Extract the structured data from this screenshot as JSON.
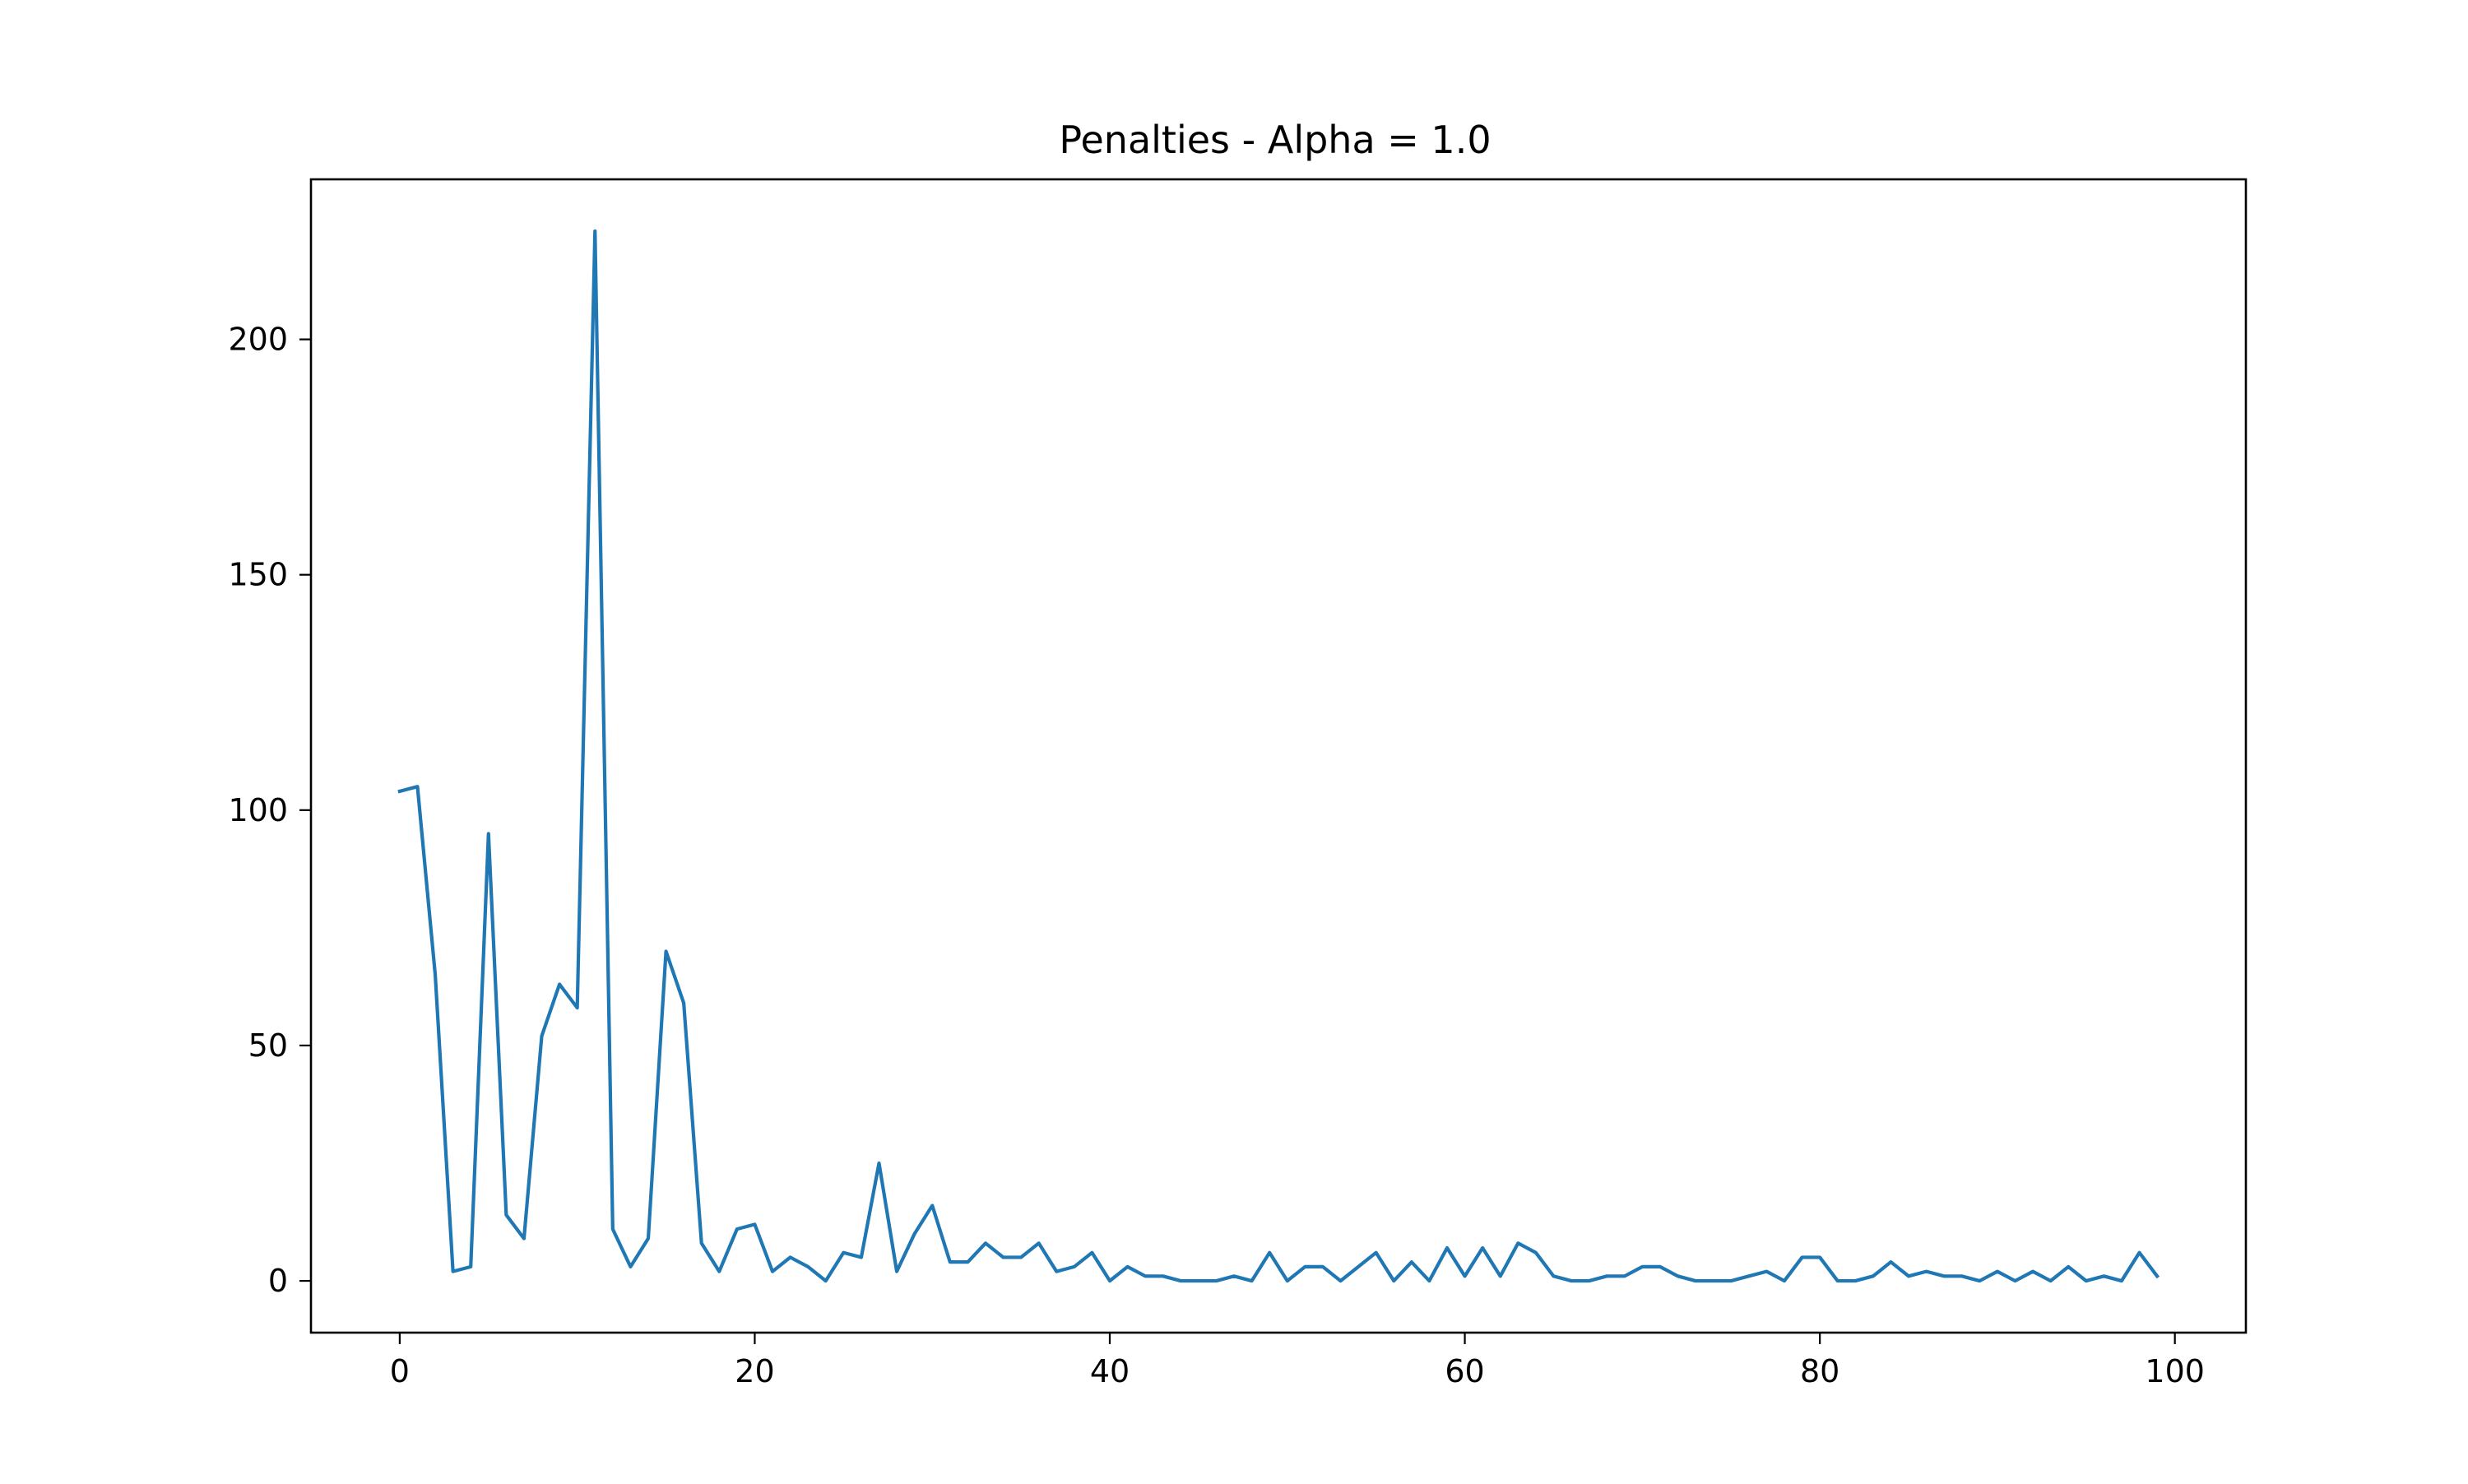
{
  "chart_data": {
    "type": "line",
    "title": "Penalties - Alpha = 1.0",
    "xlabel": "",
    "ylabel": "",
    "xlim": [
      -5,
      104
    ],
    "ylim": [
      -11,
      234
    ],
    "xticks": [
      0,
      20,
      40,
      60,
      80,
      100
    ],
    "yticks": [
      0,
      50,
      100,
      150,
      200
    ],
    "grid": false,
    "series": [
      {
        "color": "#1f77b4",
        "x": [
          0,
          1,
          2,
          3,
          4,
          5,
          6,
          7,
          8,
          9,
          10,
          11,
          12,
          13,
          14,
          15,
          16,
          17,
          18,
          19,
          20,
          21,
          22,
          23,
          24,
          25,
          26,
          27,
          28,
          29,
          30,
          31,
          32,
          33,
          34,
          35,
          36,
          37,
          38,
          39,
          40,
          41,
          42,
          43,
          44,
          45,
          46,
          47,
          48,
          49,
          50,
          51,
          52,
          53,
          54,
          55,
          56,
          57,
          58,
          59,
          60,
          61,
          62,
          63,
          64,
          65,
          66,
          67,
          68,
          69,
          70,
          71,
          72,
          73,
          74,
          75,
          76,
          77,
          78,
          79,
          80,
          81,
          82,
          83,
          84,
          85,
          86,
          87,
          88,
          89,
          90,
          91,
          92,
          93,
          94,
          95,
          96,
          97,
          98,
          99
        ],
        "values": [
          104,
          105,
          65,
          2,
          3,
          95,
          14,
          9,
          52,
          63,
          58,
          223,
          11,
          3,
          9,
          70,
          59,
          8,
          2,
          11,
          12,
          2,
          5,
          3,
          0,
          6,
          5,
          25,
          2,
          10,
          16,
          4,
          4,
          8,
          5,
          5,
          8,
          2,
          3,
          6,
          0,
          3,
          1,
          1,
          0,
          0,
          0,
          1,
          0,
          6,
          0,
          3,
          3,
          0,
          3,
          6,
          0,
          4,
          0,
          7,
          1,
          7,
          1,
          8,
          6,
          1,
          0,
          0,
          1,
          1,
          3,
          3,
          1,
          0,
          0,
          0,
          1,
          2,
          0,
          5,
          5,
          0,
          0,
          1,
          4,
          1,
          2,
          1,
          1,
          0,
          2,
          0,
          2,
          0,
          3,
          0,
          1,
          0,
          6,
          1
        ]
      }
    ]
  }
}
